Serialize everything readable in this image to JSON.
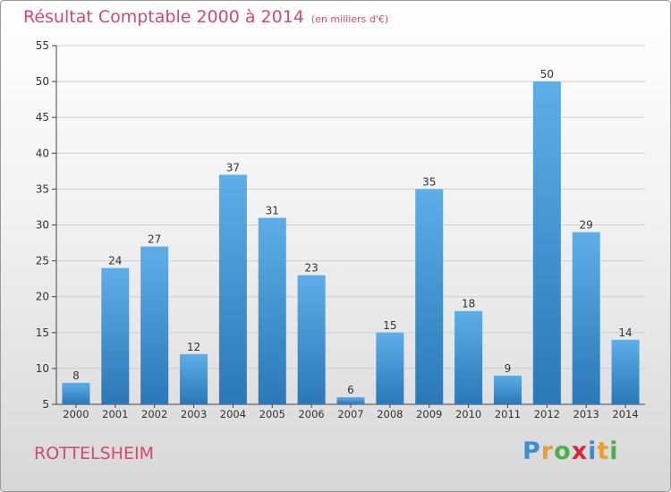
{
  "header": {
    "title": "Résultat Comptable 2000 à 2014",
    "subtitle": "(en milliers d'€)"
  },
  "footer": {
    "commune": "ROTTELSHEIM",
    "logo_letters": [
      "P",
      "r",
      "o",
      "x",
      "i",
      "t",
      "i"
    ],
    "logo_colors": [
      "#3a8fd3",
      "#e8a22b",
      "#4bb04a",
      "#d6293f",
      "#3a8fd3",
      "#e8a22b",
      "#4bb04a"
    ]
  },
  "chart_data": {
    "type": "bar",
    "categories": [
      "2000",
      "2001",
      "2002",
      "2003",
      "2004",
      "2005",
      "2006",
      "2007",
      "2008",
      "2009",
      "2010",
      "2011",
      "2012",
      "2013",
      "2014"
    ],
    "values": [
      8,
      24,
      27,
      12,
      37,
      31,
      23,
      6,
      15,
      35,
      18,
      9,
      50,
      29,
      14
    ],
    "ylim": [
      5,
      55
    ],
    "yticks": [
      5,
      10,
      15,
      20,
      25,
      30,
      35,
      40,
      45,
      50,
      55
    ],
    "grid": true,
    "legend": "none",
    "colors": {
      "bar_top": "#5daee8",
      "bar_bottom": "#2a78b8",
      "grid": "#cfcfcf",
      "axis": "#444444",
      "text": "#333333"
    }
  }
}
